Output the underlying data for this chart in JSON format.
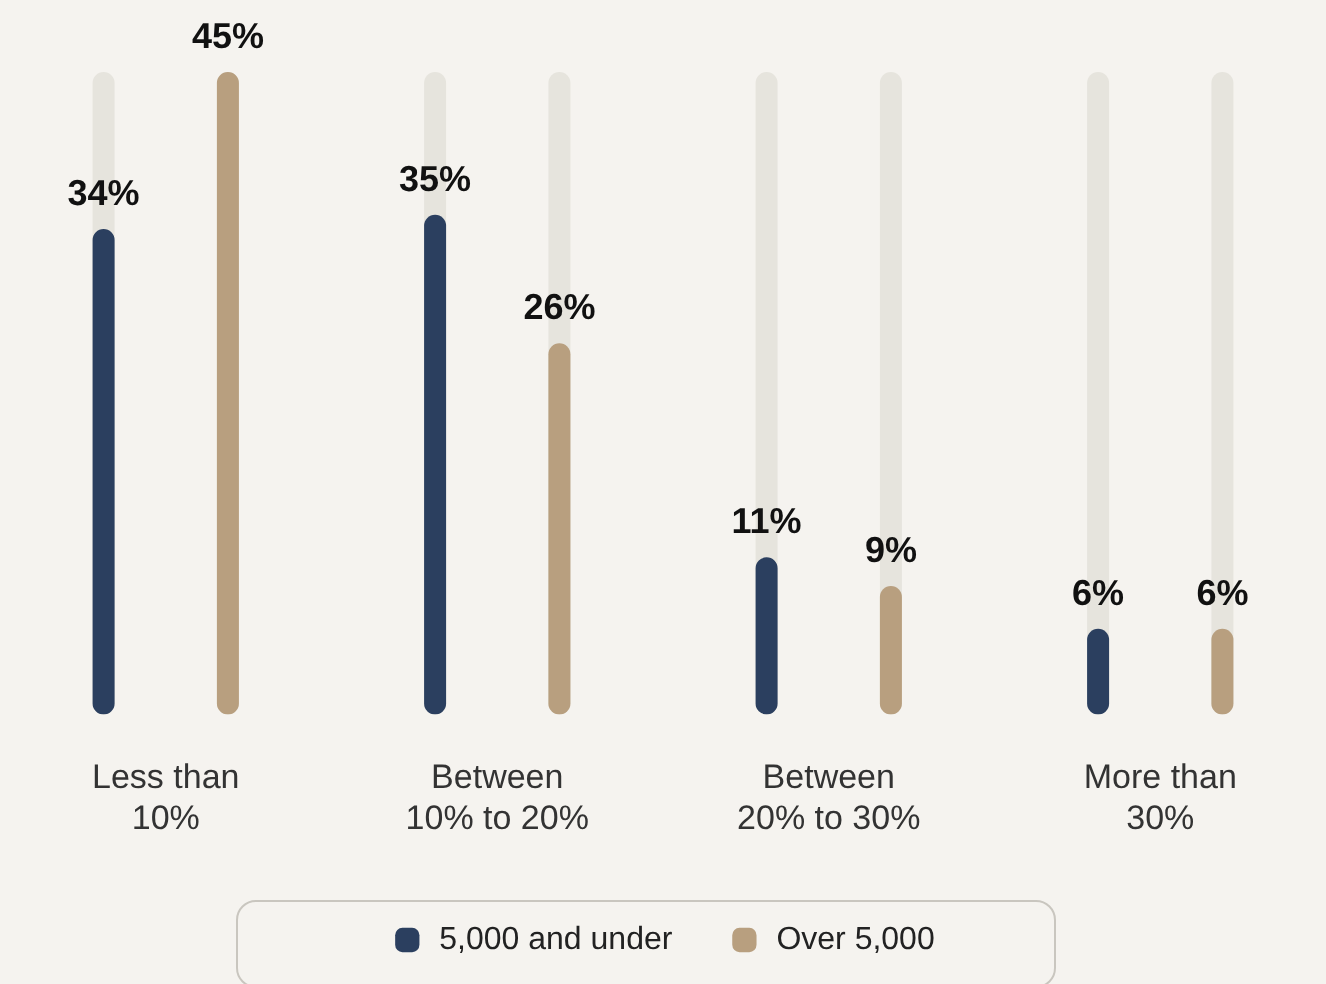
{
  "chart_data": {
    "type": "bar",
    "categories": [
      "Less than\n10%",
      "Between\n10% to 20%",
      "Between\n20% to 30%",
      "More than\n30%"
    ],
    "series": [
      {
        "name": "5,000 and under",
        "color": "#2b3f5f",
        "values": [
          34,
          35,
          11,
          6
        ],
        "value_labels": [
          "34%",
          "35%",
          "11%",
          "6%"
        ]
      },
      {
        "name": "Over 5,000",
        "color": "#b89f7f",
        "values": [
          45,
          26,
          9,
          6
        ],
        "value_labels": [
          "45%",
          "26%",
          "9%",
          "6%"
        ]
      }
    ],
    "grid": false,
    "legend": "bottom",
    "tick_labels": "x"
  }
}
